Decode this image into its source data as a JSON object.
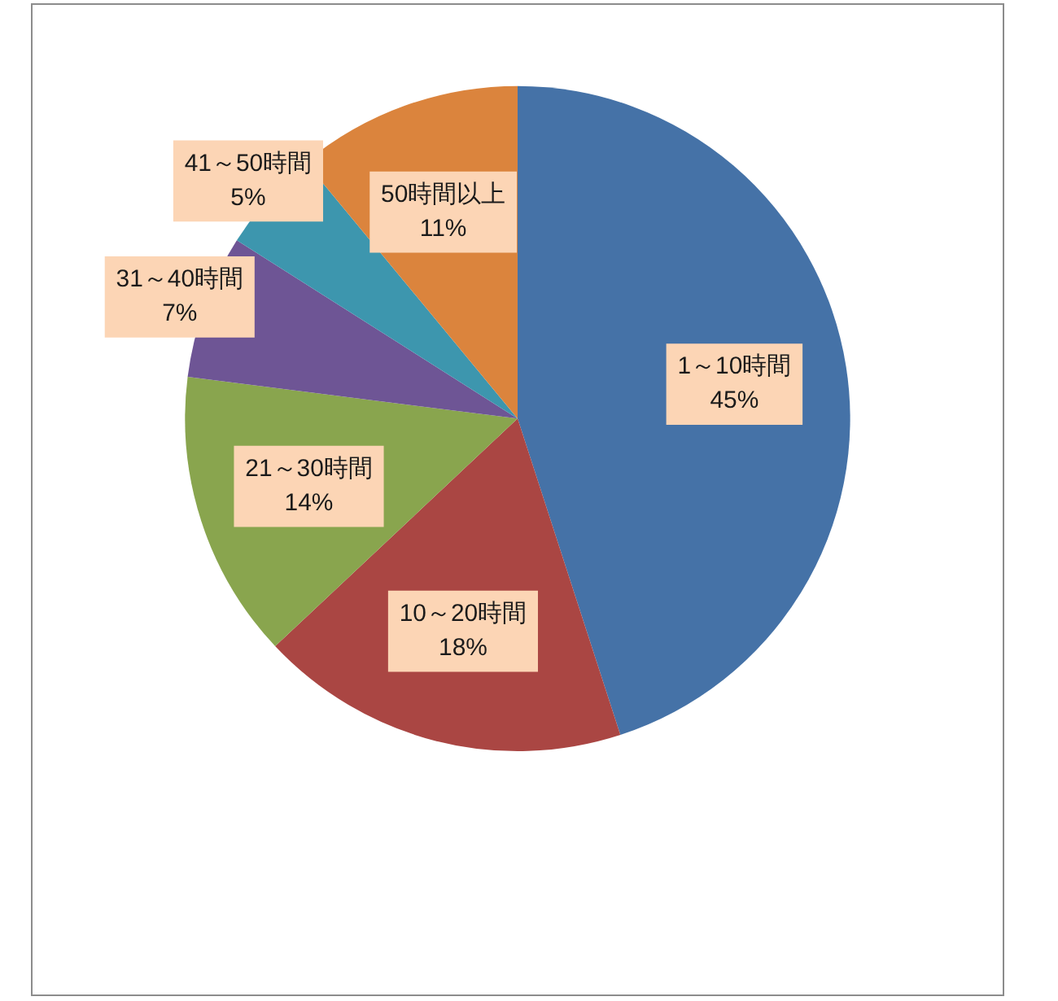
{
  "chart_data": {
    "type": "pie",
    "categories": [
      "1～10時間",
      "10～20時間",
      "21～30時間",
      "31～40時間",
      "41～50時間",
      "50時間以上"
    ],
    "values": [
      45,
      18,
      14,
      7,
      5,
      11
    ],
    "value_labels": [
      "45%",
      "18%",
      "14%",
      "7%",
      "5%",
      "11%"
    ],
    "colors": [
      "#4572a7",
      "#aa4643",
      "#89a54e",
      "#6e5595",
      "#3d96ae",
      "#db843d"
    ]
  }
}
